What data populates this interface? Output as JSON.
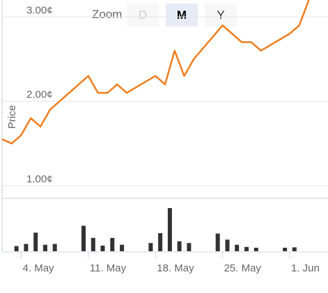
{
  "zoom": {
    "label": "Zoom",
    "buttons": [
      {
        "label": "D",
        "state": "disabled"
      },
      {
        "label": "M",
        "state": "selected"
      },
      {
        "label": "Y",
        "state": "normal"
      }
    ]
  },
  "chart_data": {
    "type": "line",
    "ylabel": "Price",
    "price_axis": {
      "ticks": [
        1.0,
        2.0,
        3.0
      ],
      "tick_labels": [
        "1.00¢",
        "2.00¢",
        "3.00¢"
      ],
      "range": [
        0.85,
        3.2
      ]
    },
    "x_axis": {
      "range": [
        "2020-05-02",
        "2020-06-05"
      ],
      "ticks": [
        "2020-05-04",
        "2020-05-11",
        "2020-05-18",
        "2020-05-25",
        "2020-06-01"
      ],
      "tick_labels": [
        "4. May",
        "11. May",
        "18. May",
        "25. May",
        "1. Jun"
      ]
    },
    "grid": true,
    "line_color": "#f07d1e",
    "volume_color": "#333333",
    "series": [
      {
        "x": [
          "2020-05-02",
          "2020-05-03",
          "2020-05-04",
          "2020-05-05",
          "2020-05-06",
          "2020-05-07",
          "2020-05-08",
          "2020-05-11",
          "2020-05-12",
          "2020-05-13",
          "2020-05-14",
          "2020-05-15",
          "2020-05-18",
          "2020-05-19",
          "2020-05-20",
          "2020-05-21",
          "2020-05-22",
          "2020-05-25",
          "2020-05-26",
          "2020-05-27",
          "2020-05-28",
          "2020-05-29",
          "2020-06-01",
          "2020-06-02",
          "2020-06-03"
        ],
        "y": [
          1.55,
          1.5,
          1.6,
          1.8,
          1.7,
          1.9,
          2.0,
          2.3,
          2.1,
          2.1,
          2.2,
          2.1,
          2.3,
          2.2,
          2.6,
          2.3,
          2.5,
          2.9,
          2.8,
          2.7,
          2.7,
          2.6,
          2.8,
          2.9,
          3.2
        ]
      }
    ],
    "volume": {
      "x": [
        "2020-05-03",
        "2020-05-04",
        "2020-05-05",
        "2020-05-06",
        "2020-05-07",
        "2020-05-10",
        "2020-05-11",
        "2020-05-12",
        "2020-05-13",
        "2020-05-14",
        "2020-05-17",
        "2020-05-18",
        "2020-05-19",
        "2020-05-20",
        "2020-05-21",
        "2020-05-24",
        "2020-05-25",
        "2020-05-26",
        "2020-05-27",
        "2020-05-28",
        "2020-05-31",
        "2020-06-01"
      ],
      "values": [
        0.12,
        0.17,
        0.43,
        0.15,
        0.17,
        0.59,
        0.31,
        0.13,
        0.31,
        0.15,
        0.19,
        0.42,
        1.0,
        0.23,
        0.19,
        0.41,
        0.27,
        0.15,
        0.1,
        0.08,
        0.08,
        0.09
      ]
    }
  }
}
